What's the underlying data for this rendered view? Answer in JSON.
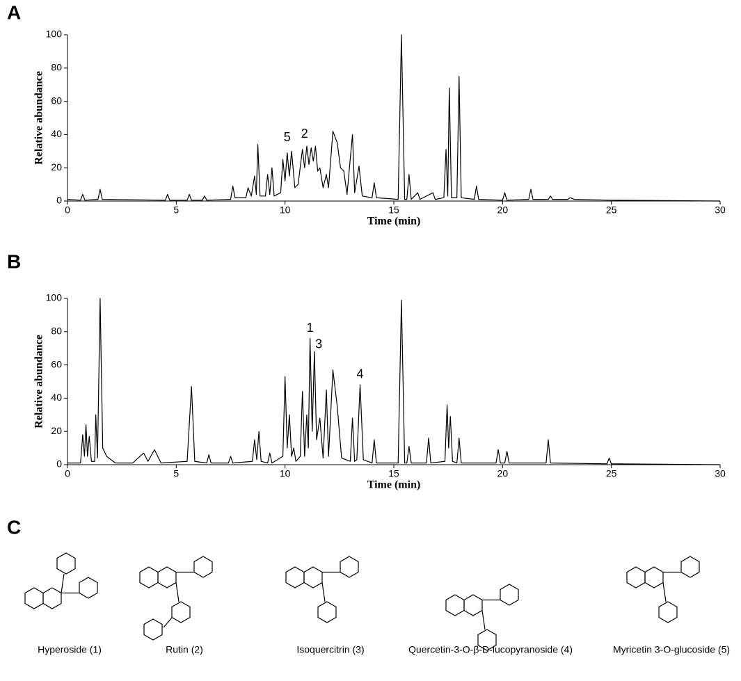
{
  "chart_data": [
    {
      "type": "line",
      "panel": "A",
      "xlabel": "Time (min)",
      "ylabel": "Relative abundance",
      "xlim": [
        0,
        30
      ],
      "ylim": [
        0,
        100
      ],
      "xticks": [
        0,
        5,
        10,
        15,
        20,
        25,
        30
      ],
      "yticks": [
        0,
        20,
        40,
        60,
        80,
        100
      ],
      "color": "#000000",
      "x": [
        0,
        0.6,
        0.7,
        0.8,
        1.4,
        1.5,
        1.6,
        4.5,
        4.6,
        4.7,
        5.5,
        5.6,
        5.7,
        6.2,
        6.3,
        6.4,
        7.5,
        7.6,
        7.7,
        8.2,
        8.3,
        8.45,
        8.6,
        8.68,
        8.75,
        8.85,
        9.1,
        9.2,
        9.3,
        9.4,
        9.5,
        9.8,
        9.9,
        10.0,
        10.1,
        10.2,
        10.3,
        10.45,
        10.6,
        10.8,
        10.9,
        11.0,
        11.1,
        11.2,
        11.3,
        11.4,
        11.5,
        11.6,
        11.75,
        11.9,
        12.0,
        12.2,
        12.4,
        12.55,
        12.7,
        12.85,
        13.1,
        13.2,
        13.4,
        13.55,
        14.0,
        14.1,
        14.2,
        15.2,
        15.35,
        15.5,
        15.6,
        15.7,
        15.8,
        16.1,
        16.2,
        16.8,
        16.9,
        17.3,
        17.4,
        17.48,
        17.55,
        17.65,
        17.9,
        18.0,
        18.1,
        18.7,
        18.8,
        18.9,
        20.0,
        20.1,
        20.2,
        21.2,
        21.3,
        21.4,
        22.1,
        22.2,
        22.3,
        23.0,
        23.1,
        23.3,
        25,
        30
      ],
      "values": [
        1,
        0.5,
        4,
        0.5,
        1,
        7,
        1,
        0.5,
        4,
        0.5,
        0.5,
        4,
        0.5,
        0.5,
        3,
        0.5,
        1,
        9,
        2,
        2,
        8,
        3,
        15,
        4,
        34,
        3,
        3,
        16,
        4,
        20,
        3,
        5,
        25,
        12,
        29,
        15,
        30,
        8,
        10,
        31,
        20,
        33,
        22,
        32,
        24,
        33,
        18,
        20,
        8,
        16,
        8,
        42,
        35,
        20,
        18,
        4,
        40,
        5,
        21,
        3,
        2,
        11,
        2,
        1,
        100,
        1,
        1,
        16,
        1,
        5,
        1,
        5,
        1,
        2,
        31,
        3,
        68,
        2,
        2,
        75,
        2,
        1,
        9,
        1,
        0.5,
        5,
        0.5,
        1,
        7,
        1,
        1,
        3,
        1,
        1,
        2,
        1,
        0.5,
        0
      ],
      "annotations": [
        {
          "text": "5",
          "x": 10.1,
          "y": 38
        },
        {
          "text": "2",
          "x": 10.9,
          "y": 40
        }
      ]
    },
    {
      "type": "line",
      "panel": "B",
      "xlabel": "Time (min)",
      "ylabel": "Relative abundance",
      "xlim": [
        0,
        30
      ],
      "ylim": [
        0,
        100
      ],
      "xticks": [
        0,
        5,
        10,
        15,
        20,
        25,
        30
      ],
      "yticks": [
        0,
        20,
        40,
        60,
        80,
        100
      ],
      "color": "#000000",
      "x": [
        0,
        0.6,
        0.7,
        0.78,
        0.85,
        0.92,
        1.0,
        1.1,
        1.25,
        1.3,
        1.38,
        1.5,
        1.62,
        1.8,
        2.2,
        3.0,
        3.5,
        3.7,
        4.0,
        4.3,
        5.5,
        5.7,
        5.85,
        6.4,
        6.5,
        6.6,
        7.4,
        7.5,
        7.6,
        8.5,
        8.6,
        8.7,
        8.8,
        8.9,
        9.2,
        9.3,
        9.4,
        9.9,
        10.0,
        10.1,
        10.2,
        10.3,
        10.4,
        10.5,
        10.7,
        10.8,
        10.9,
        11.0,
        11.07,
        11.15,
        11.25,
        11.35,
        11.45,
        11.6,
        11.75,
        11.9,
        12.0,
        12.2,
        12.4,
        12.6,
        13.0,
        13.1,
        13.2,
        13.3,
        13.45,
        13.6,
        14.0,
        14.1,
        14.2,
        15.2,
        15.35,
        15.5,
        15.6,
        15.7,
        15.8,
        16.5,
        16.6,
        16.7,
        17.35,
        17.45,
        17.52,
        17.6,
        17.7,
        17.9,
        18.0,
        18.1,
        19.7,
        19.8,
        19.9,
        20.1,
        20.2,
        20.3,
        22.0,
        22.1,
        22.2,
        24.8,
        24.9,
        25.0,
        30
      ],
      "values": [
        1,
        1,
        18,
        5,
        24,
        5,
        17,
        2,
        2,
        30,
        4,
        100,
        10,
        5,
        1,
        1,
        7,
        2,
        9,
        1,
        2,
        47,
        2,
        1,
        6,
        1,
        1,
        5,
        1,
        2,
        15,
        3,
        20,
        2,
        1,
        7,
        1,
        5,
        53,
        10,
        30,
        5,
        10,
        2,
        5,
        44,
        5,
        30,
        10,
        76,
        20,
        68,
        15,
        28,
        4,
        45,
        5,
        57,
        35,
        4,
        2,
        28,
        2,
        3,
        48,
        3,
        1,
        15,
        1,
        1,
        99,
        1,
        1,
        11,
        1,
        1,
        16,
        1,
        2,
        36,
        10,
        29,
        2,
        1,
        16,
        1,
        1,
        9,
        1,
        1,
        8,
        1,
        1,
        15,
        1,
        0.5,
        4,
        0.5,
        0
      ],
      "annotations": [
        {
          "text": "1",
          "x": 11.15,
          "y": 82
        },
        {
          "text": "3",
          "x": 11.55,
          "y": 72
        },
        {
          "text": "4",
          "x": 13.45,
          "y": 54
        }
      ]
    }
  ],
  "panel_c": {
    "label": "C",
    "compounds": [
      "Hyperoside (1)",
      "Rutin (2)",
      "Isoquercitrin (3)",
      "Quercetin-3-O-β-D-lucopyranoside (4)",
      "Myricetin 3-O-glucoside (5)"
    ]
  }
}
